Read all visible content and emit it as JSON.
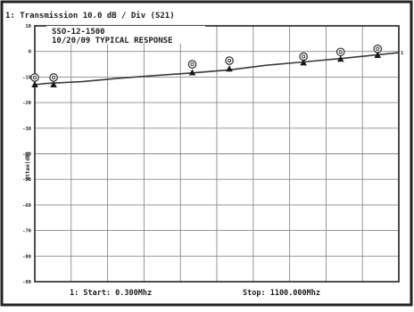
{
  "header": {
    "title": "1:  Transmission  10.0 dB / Div    (S21)",
    "note_line1": "SSO-12-1500",
    "note_line2": "10/20/09  TYPICAL RESPONSE"
  },
  "footer": {
    "start_text": "1:  Start:      0.300Mhz",
    "stop_text": "Stop:  1100.000Mhz"
  },
  "chart_data": {
    "type": "line",
    "title": "1:  Transmission  10.0 dB / Div    (S21)",
    "xlabel": "",
    "ylabel": "Atten(dB)",
    "xlim": [
      0.3,
      1100.0
    ],
    "ylim": [
      -90,
      10
    ],
    "grid": true,
    "y_ticks": [
      "10",
      "0",
      "-10",
      "-20",
      "-30",
      "-40",
      "-50",
      "-60",
      "-70",
      "-80",
      "-90"
    ],
    "x_divisions": 10,
    "end_marker_label": "1",
    "series": [
      {
        "x": [
          0.3,
          36,
          143,
          254,
          365,
          476,
          588,
          700,
          812,
          924,
          1036,
          1100
        ],
        "y": [
          -13.0,
          -12.5,
          -11.8,
          -10.5,
          -9.4,
          -8.4,
          -7.2,
          -5.4,
          -4.1,
          -2.8,
          -1.3,
          -0.5
        ]
      }
    ],
    "markers_circle": [
      {
        "x": 0.3,
        "y": -10.2
      },
      {
        "x": 57,
        "y": -10.2
      },
      {
        "x": 476,
        "y": -5.0
      },
      {
        "x": 588,
        "y": -3.6
      },
      {
        "x": 812,
        "y": -2.0
      },
      {
        "x": 924,
        "y": -0.2
      },
      {
        "x": 1036,
        "y": 1.0
      }
    ],
    "markers_triangle": [
      {
        "x": 0.3,
        "y": -13.0
      },
      {
        "x": 57,
        "y": -13.0
      },
      {
        "x": 476,
        "y": -8.3
      },
      {
        "x": 588,
        "y": -6.8
      },
      {
        "x": 812,
        "y": -4.4
      },
      {
        "x": 924,
        "y": -3.0
      },
      {
        "x": 1036,
        "y": -1.5
      }
    ],
    "colors": {
      "grid": "#8a8a8a",
      "trace": "#3a3a3a",
      "border": "#222222"
    }
  }
}
